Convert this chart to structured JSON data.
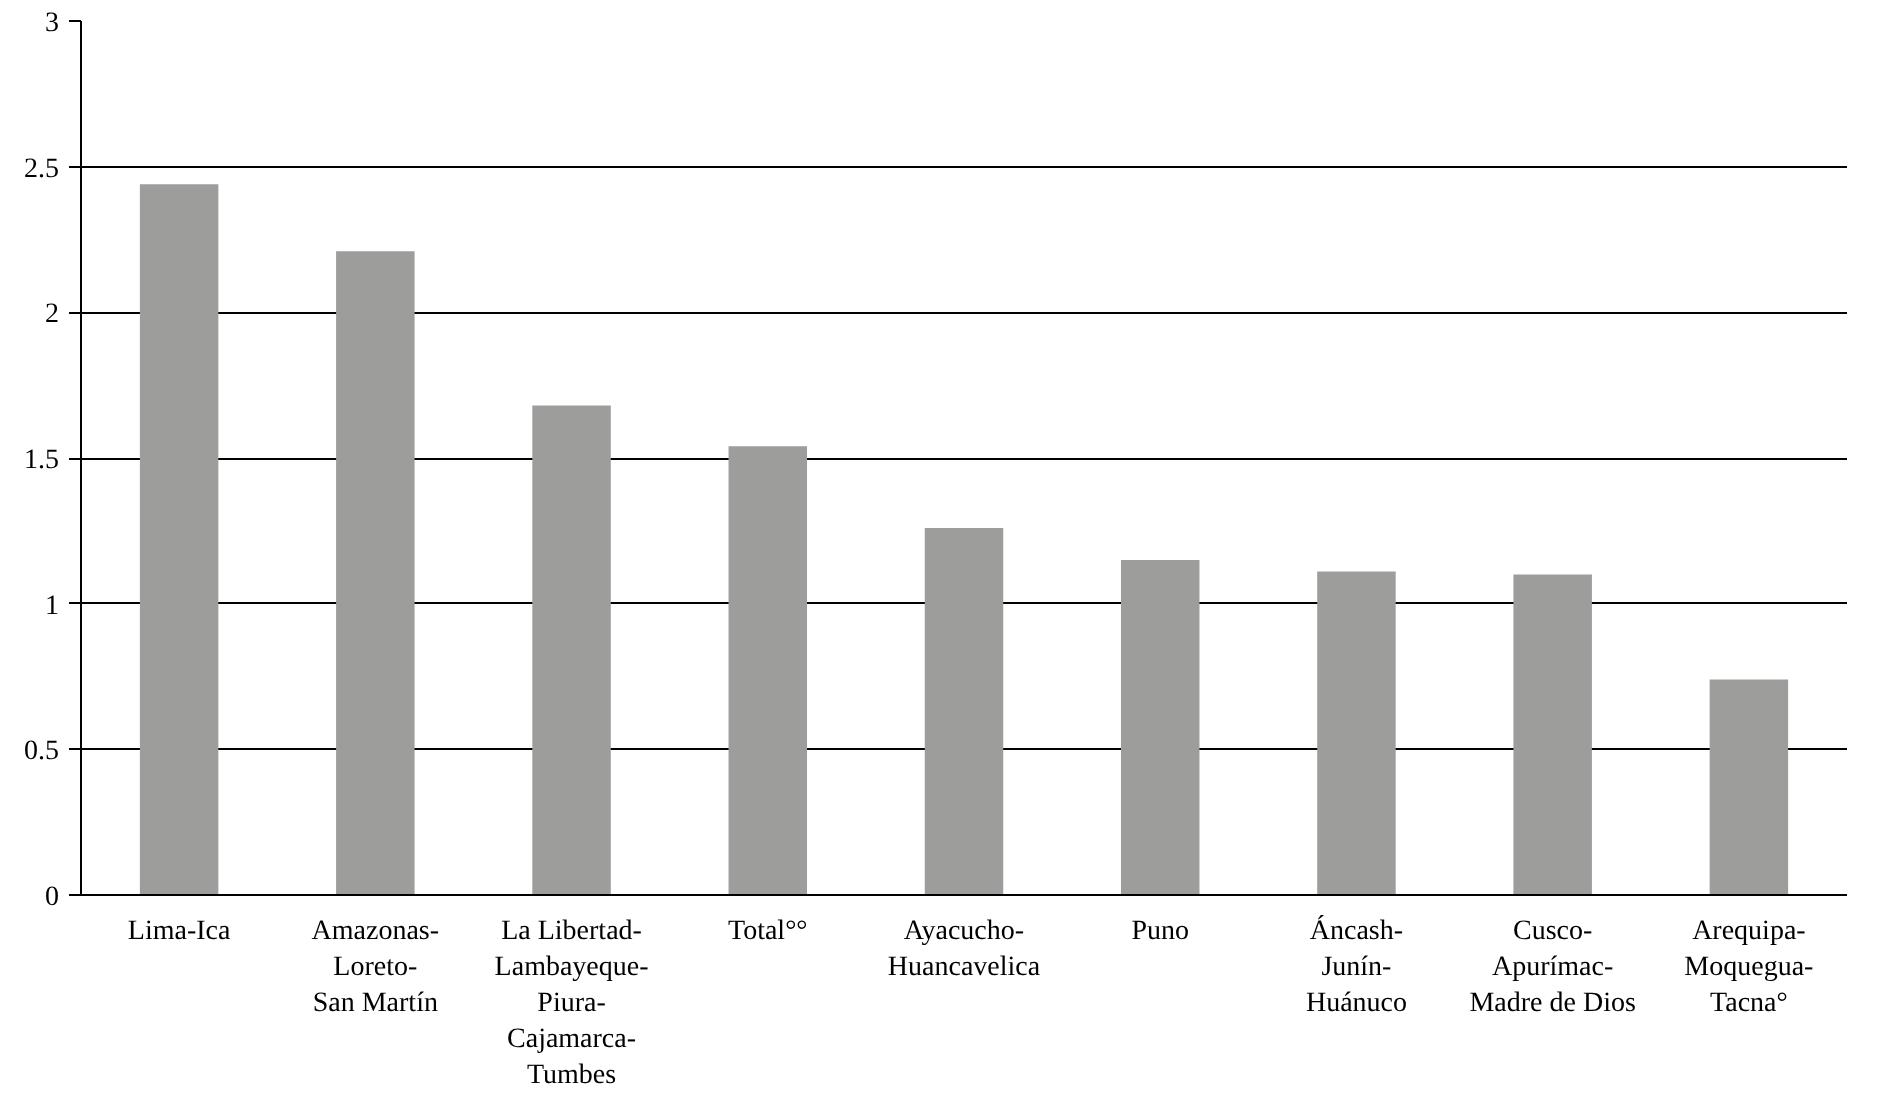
{
  "chart_data": {
    "type": "bar",
    "categories": [
      "Lima-Ica",
      "Amazonas-\nLoreto-\nSan Martín",
      "La Libertad-\nLambayeque-\nPiura-\nCajamarca-\nTumbes",
      "Total°°",
      "Ayacucho-\nHuancavelica",
      "Puno",
      "Áncash-\nJunín-\nHuánuco",
      "Cusco-\nApurímac-\nMadre de Dios",
      "Arequipa-\nMoquegua-\nTacna°"
    ],
    "values": [
      2.44,
      2.21,
      1.68,
      1.54,
      1.26,
      1.15,
      1.11,
      1.1,
      0.74
    ],
    "color": "#9d9d9c",
    "ylim": [
      0,
      3
    ],
    "yticks": [
      0,
      0.5,
      1,
      1.5,
      2,
      2.5,
      3
    ],
    "grid": "y"
  }
}
